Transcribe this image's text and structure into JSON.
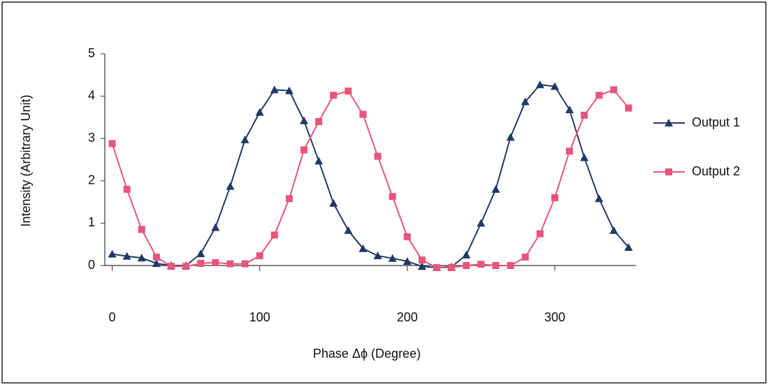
{
  "chart_data": {
    "type": "line",
    "y_label": "Intensity (Arbitrary Unit)",
    "x_label": "Phase Δϕ (Degree)",
    "x": [
      0,
      10,
      20,
      30,
      40,
      50,
      60,
      70,
      80,
      90,
      100,
      110,
      120,
      130,
      140,
      150,
      160,
      170,
      180,
      190,
      200,
      210,
      220,
      230,
      240,
      250,
      260,
      270,
      280,
      290,
      300,
      310,
      320,
      330,
      340,
      350
    ],
    "series": [
      {
        "name": "Output 1",
        "color": "#1f3a68",
        "marker": "triangle",
        "values": [
          0.27,
          0.22,
          0.18,
          0.05,
          0,
          0,
          0.28,
          0.9,
          1.87,
          2.97,
          3.62,
          4.15,
          4.13,
          3.42,
          2.47,
          1.47,
          0.83,
          0.4,
          0.23,
          0.17,
          0.1,
          -0.02,
          -0.05,
          -0.03,
          0.25,
          1.0,
          1.8,
          3.03,
          3.87,
          4.27,
          4.23,
          3.68,
          2.55,
          1.58,
          0.83,
          0.43
        ]
      },
      {
        "name": "Output 2",
        "color": "#e8557a",
        "marker": "square",
        "values": [
          2.88,
          1.8,
          0.85,
          0.2,
          -0.02,
          -0.02,
          0.05,
          0.07,
          0.04,
          0.04,
          0.23,
          0.72,
          1.58,
          2.73,
          3.4,
          4.02,
          4.12,
          3.57,
          2.58,
          1.63,
          0.68,
          0.13,
          -0.05,
          -0.05,
          0,
          0.03,
          0,
          0,
          0.2,
          0.75,
          1.6,
          2.7,
          3.55,
          4.02,
          4.15,
          3.72
        ]
      }
    ],
    "xlim": [
      -5,
      355
    ],
    "xticks": [
      0,
      100,
      200,
      300
    ],
    "ylim": [
      0,
      5
    ],
    "yticks": [
      0,
      1,
      2,
      3,
      4,
      5
    ],
    "grid": false,
    "legend": "right"
  }
}
